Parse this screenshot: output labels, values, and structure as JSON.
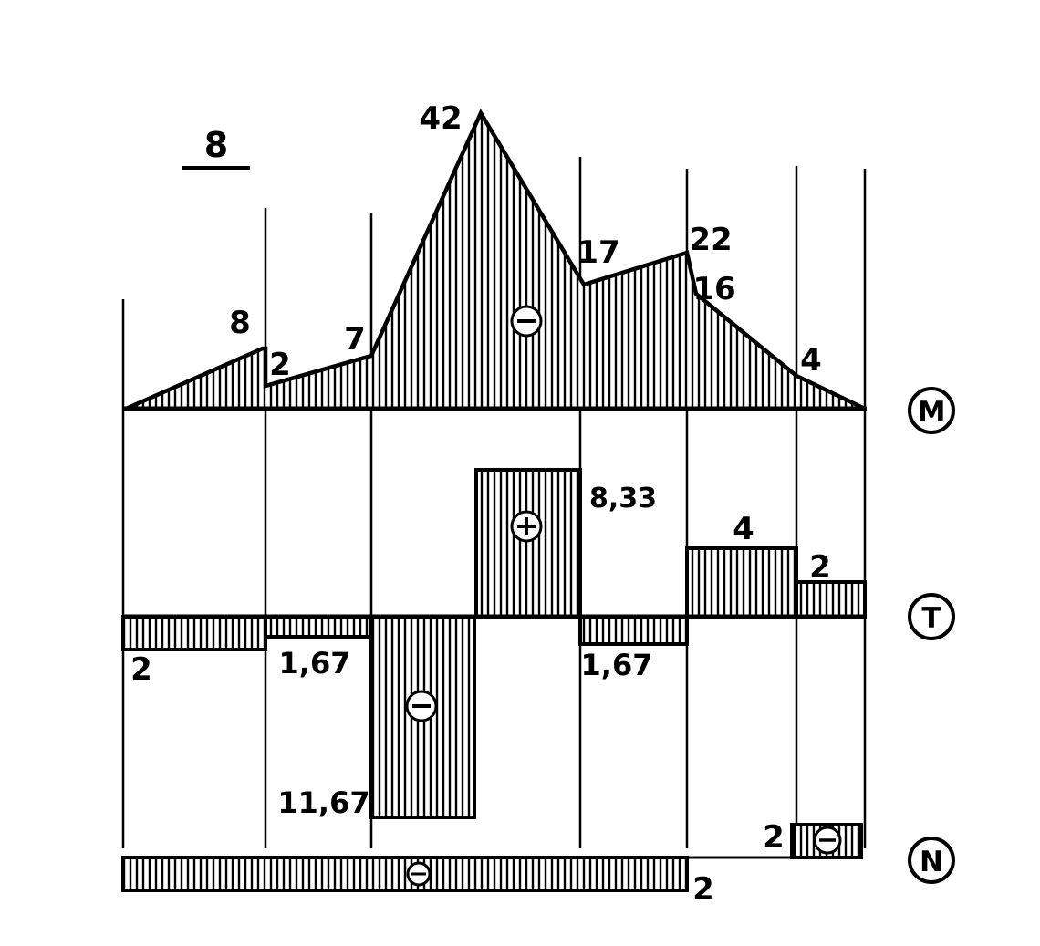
{
  "figure": {
    "number": "8"
  },
  "diagrams": {
    "moment": {
      "symbol": "M"
    },
    "shear": {
      "symbol": "T"
    },
    "normal": {
      "symbol": "N"
    }
  },
  "moment_labels": [
    "8",
    "2",
    "7",
    "42",
    "17",
    "22",
    "16",
    "4"
  ],
  "shear_labels": [
    "2",
    "1,67",
    "11,67",
    "8,33",
    "1,67",
    "4",
    "2"
  ],
  "normal_labels": [
    "2",
    "2"
  ],
  "signs": {
    "minus": "−",
    "plus": "+"
  },
  "colors": {
    "ink": "#000000",
    "paper": "#ffffff"
  }
}
